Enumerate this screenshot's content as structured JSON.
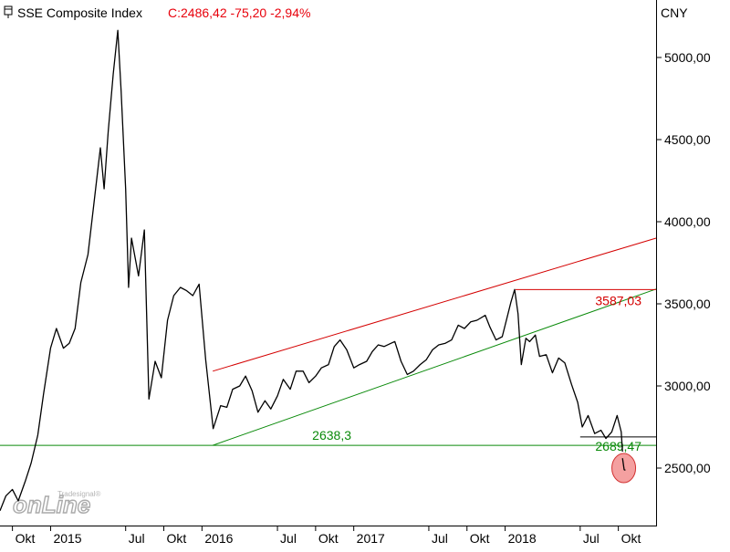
{
  "header": {
    "title": "SSE Composite Index",
    "quote": "C:2486,42 -75,20 -2,94%",
    "currency": "CNY",
    "title_color": "#000000",
    "quote_color": "#e8000b"
  },
  "watermark": {
    "text_small": "Tradesignal®",
    "text_big": "onLine"
  },
  "chart_data": {
    "type": "line",
    "title": "SSE Composite Index",
    "currency": "CNY",
    "last_close": 2486.42,
    "change": -75.2,
    "change_pct": -2.94,
    "ylim": [
      2150,
      5350
    ],
    "y_ticks": [
      2500,
      3000,
      3500,
      4000,
      4500,
      5000
    ],
    "y_tick_labels": [
      "2500,00",
      "3000,00",
      "3500,00",
      "4000,00",
      "4500,00",
      "5000,00"
    ],
    "x_range": [
      "2014-09-01",
      "2018-12-31"
    ],
    "x_ticks": [
      {
        "date": "2014-10-01",
        "label": "Okt"
      },
      {
        "date": "2015-01-01",
        "label": "2015"
      },
      {
        "date": "2015-07-01",
        "label": "Jul"
      },
      {
        "date": "2015-10-01",
        "label": "Okt"
      },
      {
        "date": "2016-01-01",
        "label": "2016"
      },
      {
        "date": "2016-07-01",
        "label": "Jul"
      },
      {
        "date": "2016-10-01",
        "label": "Okt"
      },
      {
        "date": "2017-01-01",
        "label": "2017"
      },
      {
        "date": "2017-07-01",
        "label": "Jul"
      },
      {
        "date": "2017-10-01",
        "label": "Okt"
      },
      {
        "date": "2018-01-01",
        "label": "2018"
      },
      {
        "date": "2018-07-01",
        "label": "Jul"
      },
      {
        "date": "2018-10-01",
        "label": "Okt"
      }
    ],
    "grid": false,
    "series": [
      {
        "color": "#000000",
        "x": [
          "2014-09-01",
          "2014-09-15",
          "2014-10-01",
          "2014-10-15",
          "2014-11-01",
          "2014-11-15",
          "2014-12-01",
          "2014-12-15",
          "2015-01-01",
          "2015-01-15",
          "2015-02-01",
          "2015-02-15",
          "2015-03-01",
          "2015-03-15",
          "2015-04-01",
          "2015-04-15",
          "2015-05-01",
          "2015-05-10",
          "2015-05-20",
          "2015-06-01",
          "2015-06-12",
          "2015-06-20",
          "2015-07-01",
          "2015-07-08",
          "2015-07-15",
          "2015-08-01",
          "2015-08-15",
          "2015-08-26",
          "2015-09-10",
          "2015-09-25",
          "2015-10-10",
          "2015-10-25",
          "2015-11-10",
          "2015-11-25",
          "2015-12-10",
          "2015-12-25",
          "2016-01-10",
          "2016-01-28",
          "2016-02-15",
          "2016-03-01",
          "2016-03-15",
          "2016-04-01",
          "2016-04-15",
          "2016-05-01",
          "2016-05-15",
          "2016-06-01",
          "2016-06-15",
          "2016-07-01",
          "2016-07-15",
          "2016-08-01",
          "2016-08-15",
          "2016-09-01",
          "2016-09-15",
          "2016-10-01",
          "2016-10-15",
          "2016-11-01",
          "2016-11-15",
          "2016-11-29",
          "2016-12-15",
          "2017-01-01",
          "2017-01-15",
          "2017-02-01",
          "2017-02-15",
          "2017-03-01",
          "2017-03-15",
          "2017-04-01",
          "2017-04-10",
          "2017-04-25",
          "2017-05-10",
          "2017-05-25",
          "2017-06-10",
          "2017-06-25",
          "2017-07-10",
          "2017-07-25",
          "2017-08-10",
          "2017-08-25",
          "2017-09-10",
          "2017-09-25",
          "2017-10-10",
          "2017-10-25",
          "2017-11-14",
          "2017-11-25",
          "2017-12-10",
          "2017-12-25",
          "2018-01-05",
          "2018-01-15",
          "2018-01-24",
          "2018-02-01",
          "2018-02-09",
          "2018-02-20",
          "2018-03-01",
          "2018-03-15",
          "2018-03-25",
          "2018-04-10",
          "2018-04-25",
          "2018-05-10",
          "2018-05-25",
          "2018-06-10",
          "2018-06-25",
          "2018-07-06",
          "2018-07-20",
          "2018-08-05",
          "2018-08-20",
          "2018-09-01",
          "2018-09-15",
          "2018-09-28",
          "2018-10-08",
          "2018-10-11"
        ],
        "y": [
          2240,
          2330,
          2370,
          2300,
          2420,
          2530,
          2700,
          2950,
          3230,
          3350,
          3230,
          3260,
          3350,
          3630,
          3800,
          4100,
          4450,
          4200,
          4550,
          4900,
          5165,
          4800,
          4200,
          3600,
          3900,
          3670,
          3950,
          2920,
          3150,
          3050,
          3400,
          3550,
          3600,
          3580,
          3550,
          3620,
          3160,
          2740,
          2880,
          2870,
          2980,
          3000,
          3060,
          2970,
          2840,
          2910,
          2860,
          2940,
          3040,
          2980,
          3090,
          3090,
          3020,
          3060,
          3110,
          3130,
          3240,
          3280,
          3220,
          3110,
          3130,
          3150,
          3210,
          3250,
          3240,
          3260,
          3270,
          3150,
          3070,
          3090,
          3130,
          3160,
          3220,
          3250,
          3260,
          3280,
          3370,
          3350,
          3390,
          3400,
          3430,
          3360,
          3280,
          3300,
          3410,
          3510,
          3587,
          3440,
          3130,
          3290,
          3270,
          3310,
          3180,
          3190,
          3080,
          3170,
          3140,
          3010,
          2900,
          2750,
          2820,
          2710,
          2730,
          2680,
          2720,
          2820,
          2720,
          2600
        ]
      },
      {
        "color": "#000000",
        "x": [
          "2018-10-11",
          "2018-10-15",
          "2018-10-18"
        ],
        "y": [
          2560,
          2490,
          2486.42
        ]
      }
    ],
    "annotations": [
      {
        "type": "line",
        "color": "#d40000",
        "label": "",
        "points": [
          [
            "2016-01-27",
            3090
          ],
          [
            "2018-12-31",
            3900
          ]
        ]
      },
      {
        "type": "line",
        "color": "#0a8a0a",
        "label": "",
        "points": [
          [
            "2016-01-27",
            2638.3
          ],
          [
            "2018-12-31",
            3590
          ]
        ]
      },
      {
        "type": "hline",
        "color": "#d40000",
        "label": "3587,03",
        "value": 3587.03,
        "from": "2018-01-26",
        "to": "2018-12-31"
      },
      {
        "type": "hline",
        "color": "#0a8a0a",
        "label": "2638,3",
        "value": 2638.3,
        "from": "2014-09-01",
        "to": "2018-12-31"
      },
      {
        "type": "hline",
        "color": "#000000",
        "label": "",
        "value": 2689.47,
        "from": "2018-07-01",
        "to": "2018-12-31"
      },
      {
        "type": "text",
        "color": "#0a8a0a",
        "label": "2689,47"
      },
      {
        "type": "highlight",
        "color": "#f08080",
        "date": "2018-10-14",
        "value": 2500
      }
    ]
  }
}
